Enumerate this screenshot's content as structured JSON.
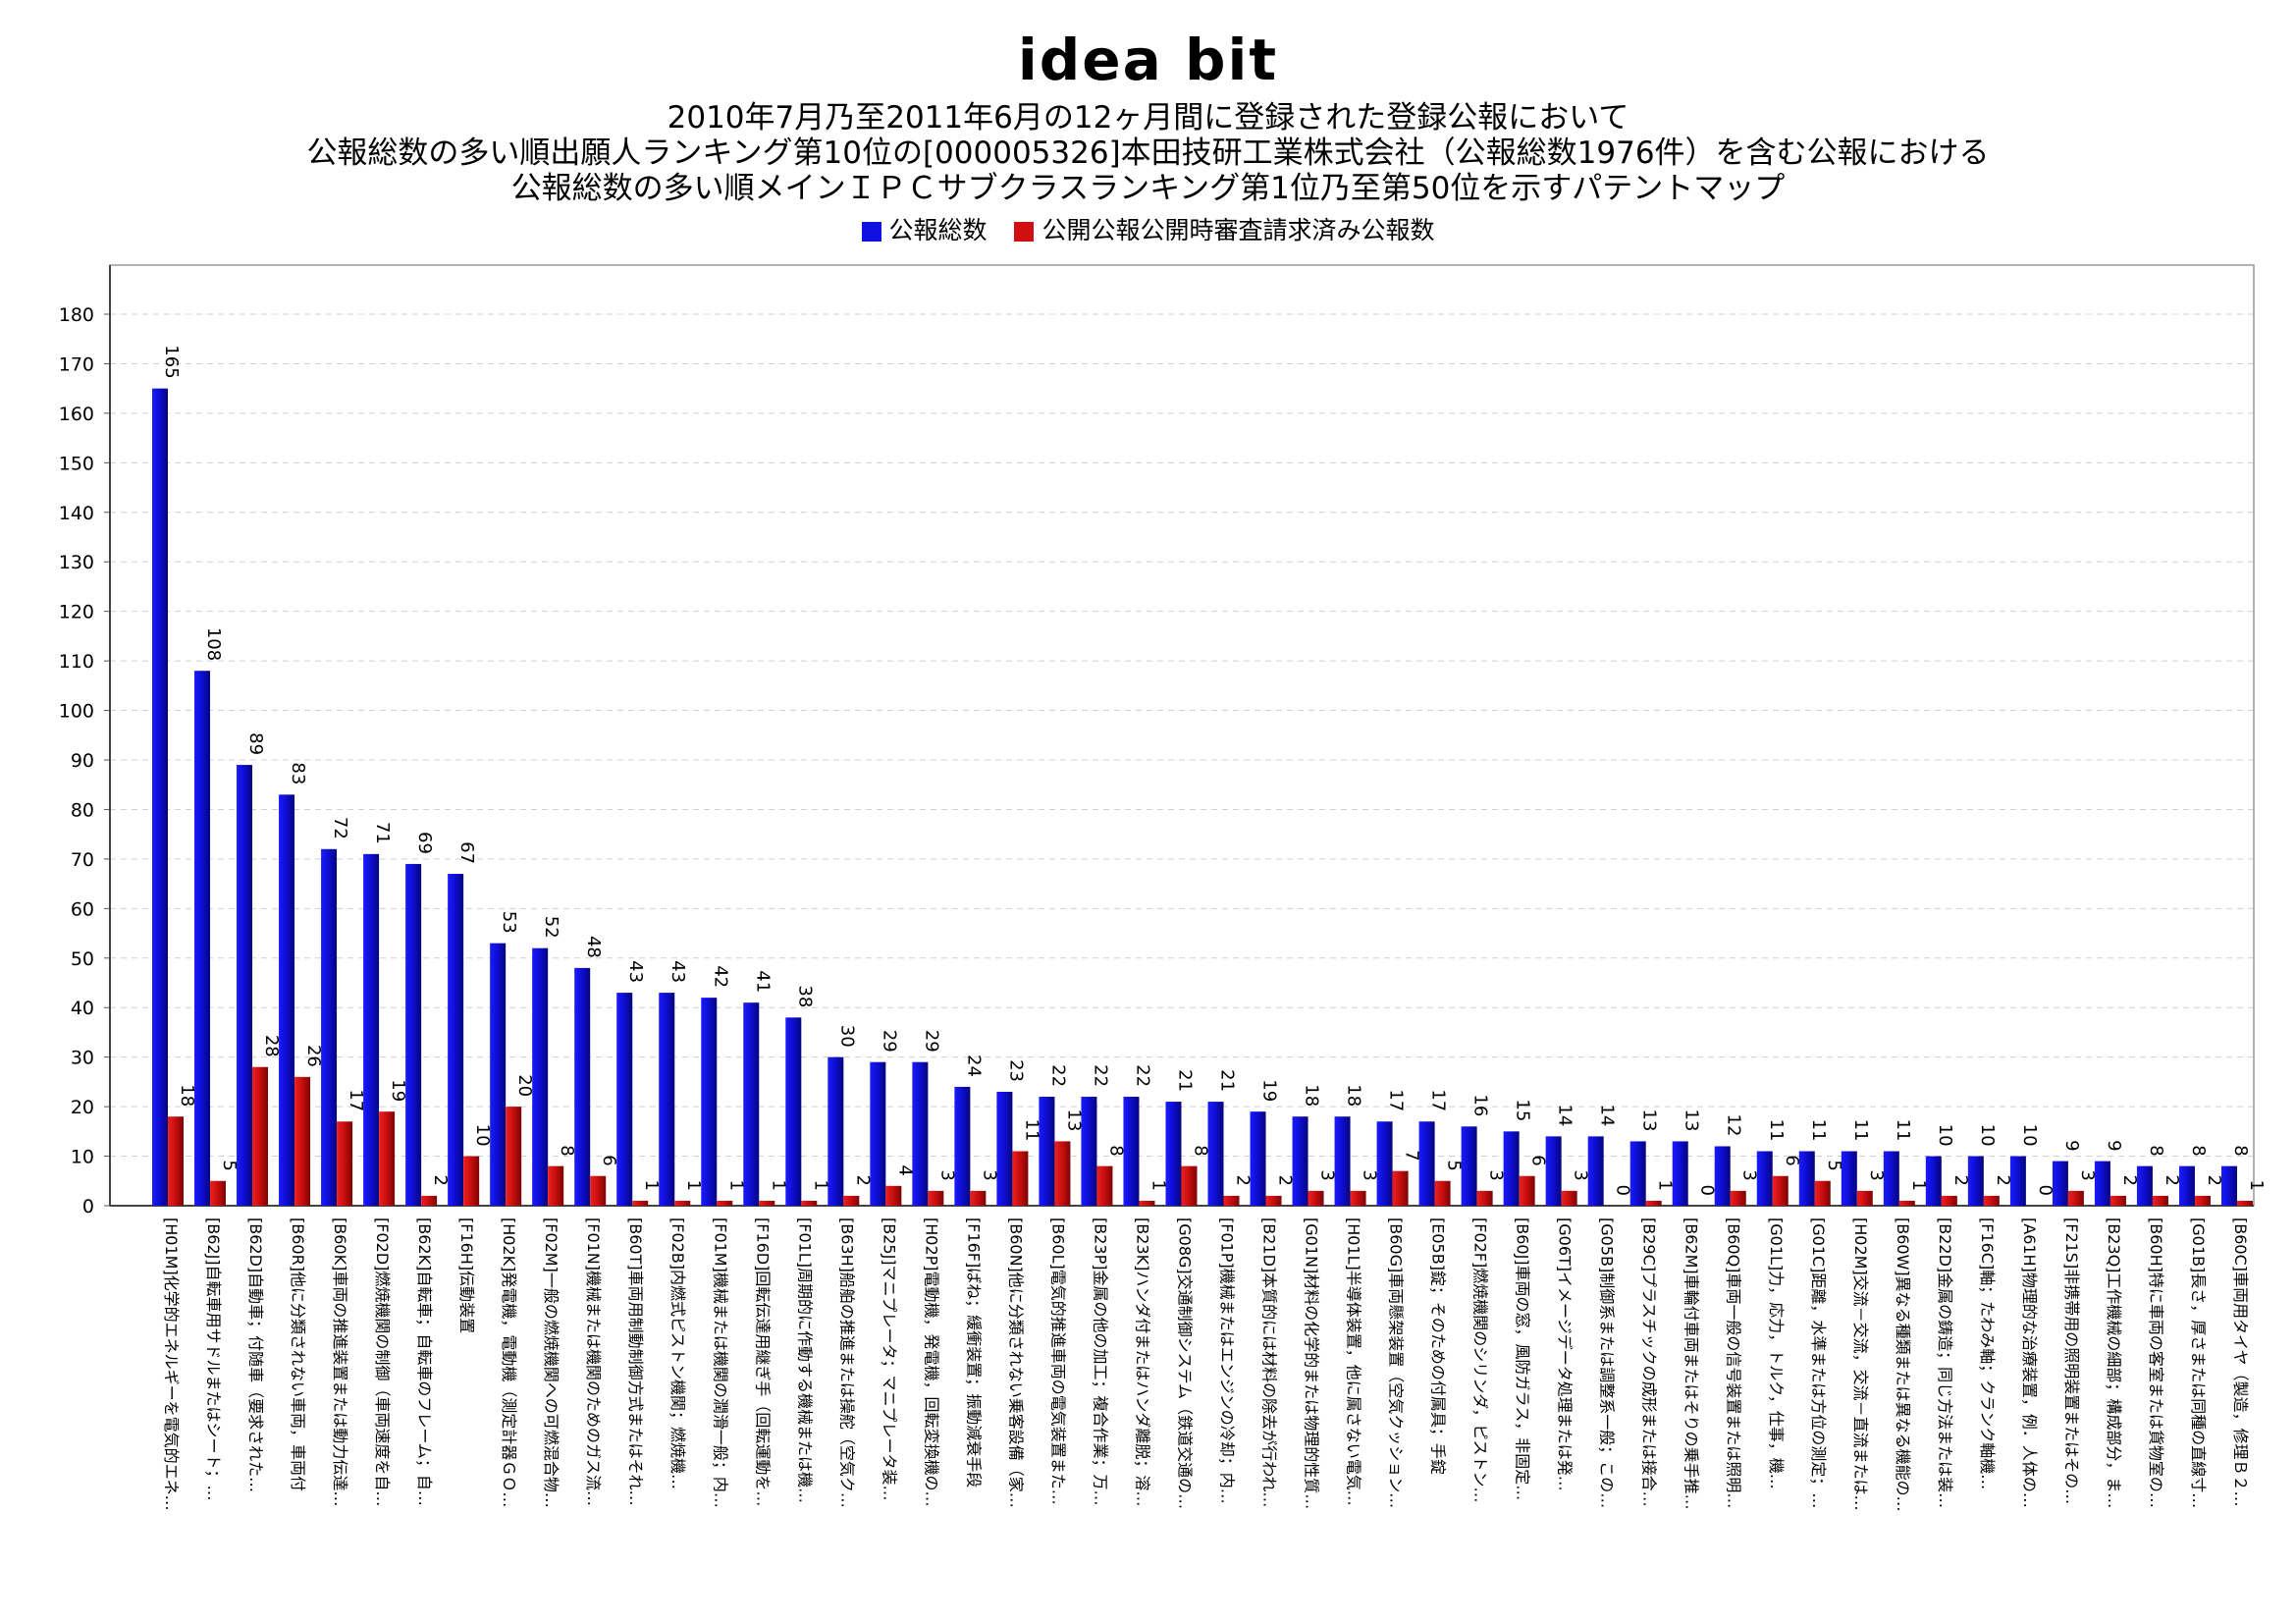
{
  "logo": "idea bit",
  "title_lines": [
    "2010年7月乃至2011年6月の12ヶ月間に登録された登録公報において",
    "公報総数の多い順出願人ランキング第10位の[000005326]本田技研工業株式会社（公報総数1976件）を含む公報における",
    "公報総数の多い順メインＩＰＣサブクラスランキング第1位乃至第50位を示すパテントマップ"
  ],
  "legend": [
    {
      "label": "公報総数",
      "color": "#1010e0"
    },
    {
      "label": "公開公報公開時審査請求済み公報数",
      "color": "#d01010"
    }
  ],
  "chart_data": {
    "type": "bar",
    "ylim": [
      0,
      180
    ],
    "ytick_step": 10,
    "grid": true,
    "legend_position": "top-center",
    "categories": [
      "[H01M]化学的エネルギーを電気的エネ…",
      "[B62J]自転車用サドルまたはシート；…",
      "[B62D]自動車；付随車（要求された…",
      "[B60R]他に分類されない車両，車両付",
      "[B60K]車両の推進装置または動力伝達…",
      "[F02D]燃焼機関の制御（車両速度を自…",
      "[B62K]自転車；自転車のフレーム；自…",
      "[F16H]伝動装置",
      "[H02K]発電機，電動機（測定計器ＧＯ…",
      "[F02M]一般の燃焼機関への可燃混合物…",
      "[F01N]機械または機関のためのガス流…",
      "[B60T]車両用制動制御方式またはそれ…",
      "[F02B]内燃式ピストン機関；燃焼機…",
      "[F01M]機械または機関の潤滑一般；内…",
      "[F16D]回転伝達用継ぎ手（回転運動を…",
      "[F01L]周期的に作動する機械または機…",
      "[B63H]船舶の推進または操舵（空気ク…",
      "[B25J]マニプレータ；マニプレータ装…",
      "[H02P]電動機，発電機，回転変換機の…",
      "[F16F]ばね；緩衝装置；振動減衰手段",
      "[B60N]他に分類されない乗客設備（家…",
      "[B60L]電気的推進車両の電気装置また…",
      "[B23P]金属の他の加工；複合作業；万…",
      "[B23K]ハンダ付またはハンダ離脱；溶…",
      "[G08G]交通制御システム（鉄道交通の…",
      "[F01P]機械またはエンジンの冷却；内…",
      "[B21D]本質的には材料の除去が行われ…",
      "[G01N]材料の化学的または物理的性質…",
      "[H01L]半導体装置，他に属さない電気…",
      "[B60G]車両懸架装置（空気クッション…",
      "[E05B]錠；そのための付属具；手錠",
      "[F02F]燃焼機関のシリンダ，ピストン…",
      "[B60J]車両の窓，風防ガラス，非固定…",
      "[G06T]イメージデータ処理または発…",
      "[G05B]制御系または調整系一般；この…",
      "[B29C]プラスチックの成形または接合…",
      "[B62M]車輪付車両またはそりの乗手推…",
      "[B60Q]車両一般の信号装置または照明…",
      "[G01L]力，応力，トルク，仕事，機…",
      "[G01C]距離，水準または方位の測定；…",
      "[H02M]交流－交流，交流－直流または…",
      "[B60W]異なる種類または異なる機能の…",
      "[B22D]金属の鋳造；同じ方法または装…",
      "[F16C]軸；たわみ軸；クランク軸機…",
      "[A61H]物理的な治療装置，例．人体の…",
      "[F21S]非携帯用の照明装置またはその…",
      "[B23Q]工作機械の細部；構成部分，ま…",
      "[B60H]特に車両の客室または貨物室の…",
      "[G01B]長さ，厚さまたは同種の直線寸…",
      "[B60C]車両用タイヤ（製造，修理Ｂ２…"
    ],
    "series": [
      {
        "name": "公報総数",
        "color": "#1010e0",
        "values": [
          165,
          108,
          89,
          83,
          72,
          71,
          69,
          67,
          53,
          52,
          48,
          43,
          43,
          42,
          41,
          38,
          30,
          29,
          29,
          24,
          23,
          22,
          22,
          22,
          21,
          21,
          19,
          18,
          18,
          17,
          17,
          16,
          15,
          14,
          14,
          13,
          13,
          12,
          11,
          11,
          11,
          11,
          10,
          10,
          10,
          9,
          9,
          8,
          8,
          8
        ]
      },
      {
        "name": "公開公報公開時審査請求済み公報数",
        "color": "#d01010",
        "values": [
          18,
          5,
          28,
          26,
          17,
          19,
          2,
          10,
          20,
          8,
          6,
          1,
          1,
          1,
          1,
          1,
          2,
          4,
          3,
          3,
          11,
          13,
          8,
          1,
          8,
          2,
          2,
          3,
          3,
          7,
          5,
          3,
          6,
          3,
          0,
          1,
          0,
          3,
          6,
          5,
          3,
          1,
          2,
          2,
          0,
          3,
          2,
          2,
          2,
          1
        ]
      }
    ]
  }
}
